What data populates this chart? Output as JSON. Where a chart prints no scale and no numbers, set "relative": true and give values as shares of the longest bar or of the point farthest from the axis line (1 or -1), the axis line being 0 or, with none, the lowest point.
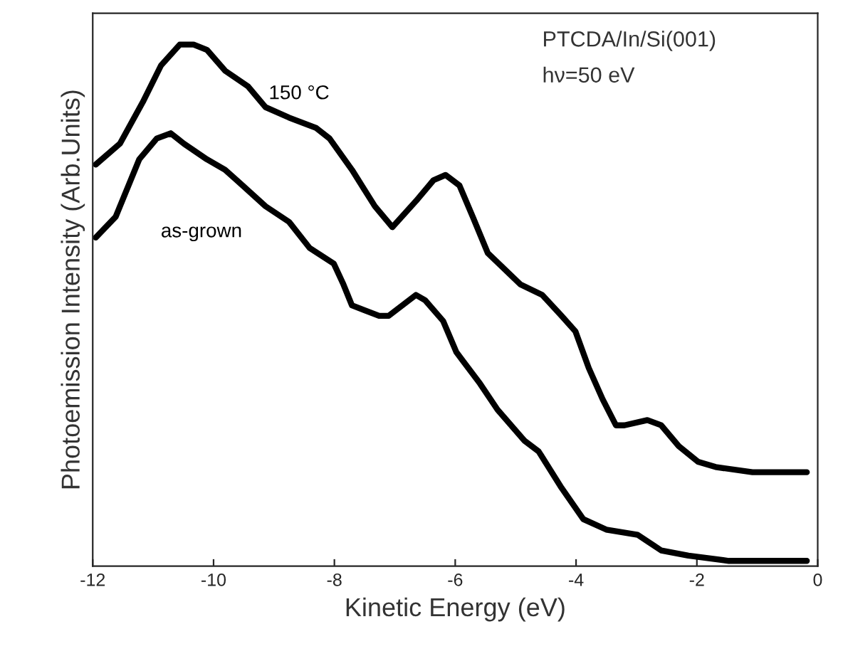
{
  "chart_data": {
    "type": "line",
    "relative": true,
    "xlabel": "Kinetic Energy (eV)",
    "ylabel": "Photoemission Intensity (Arb.Units)",
    "xlim": [
      -12,
      0
    ],
    "xticks": [
      -12,
      -10,
      -8,
      -6,
      -4,
      -2,
      0
    ],
    "annotations": [
      "PTCDA/In/Si(001)",
      "hν=50 eV"
    ],
    "grid": false,
    "legend": false,
    "series": [
      {
        "name": "150 °C",
        "color": "#000000",
        "x": [
          -11.95,
          -11.55,
          -11.17,
          -10.87,
          -10.56,
          -10.33,
          -10.11,
          -9.81,
          -9.43,
          -9.14,
          -8.75,
          -8.3,
          -8.08,
          -7.71,
          -7.33,
          -7.04,
          -6.65,
          -6.36,
          -6.16,
          -5.93,
          -5.71,
          -5.46,
          -4.92,
          -4.56,
          -4.24,
          -4.01,
          -3.79,
          -3.56,
          -3.34,
          -3.2,
          -2.82,
          -2.59,
          -2.3,
          -1.98,
          -1.69,
          -1.08,
          -0.18
        ],
        "values": [
          0.77,
          0.81,
          0.89,
          0.96,
          1.0,
          1.0,
          0.99,
          0.95,
          0.92,
          0.88,
          0.86,
          0.84,
          0.82,
          0.76,
          0.69,
          0.65,
          0.7,
          0.74,
          0.75,
          0.73,
          0.67,
          0.6,
          0.54,
          0.52,
          0.48,
          0.45,
          0.38,
          0.32,
          0.27,
          0.27,
          0.28,
          0.27,
          0.23,
          0.2,
          0.19,
          0.18,
          0.18
        ]
      },
      {
        "name": "as-grown",
        "color": "#000000",
        "x": [
          -11.95,
          -11.62,
          -11.23,
          -10.94,
          -10.71,
          -10.49,
          -10.11,
          -9.81,
          -9.52,
          -9.14,
          -8.75,
          -8.41,
          -8.01,
          -7.85,
          -7.71,
          -7.26,
          -7.1,
          -6.65,
          -6.5,
          -6.2,
          -5.98,
          -5.59,
          -5.3,
          -4.85,
          -4.62,
          -4.24,
          -3.88,
          -3.5,
          -2.98,
          -2.59,
          -2.14,
          -1.47,
          -0.18
        ],
        "values": [
          0.63,
          0.67,
          0.78,
          0.82,
          0.83,
          0.81,
          0.78,
          0.76,
          0.73,
          0.69,
          0.66,
          0.61,
          0.58,
          0.54,
          0.5,
          0.48,
          0.48,
          0.52,
          0.51,
          0.47,
          0.41,
          0.35,
          0.3,
          0.24,
          0.22,
          0.15,
          0.09,
          0.07,
          0.06,
          0.03,
          0.02,
          0.01,
          0.01
        ]
      }
    ]
  }
}
